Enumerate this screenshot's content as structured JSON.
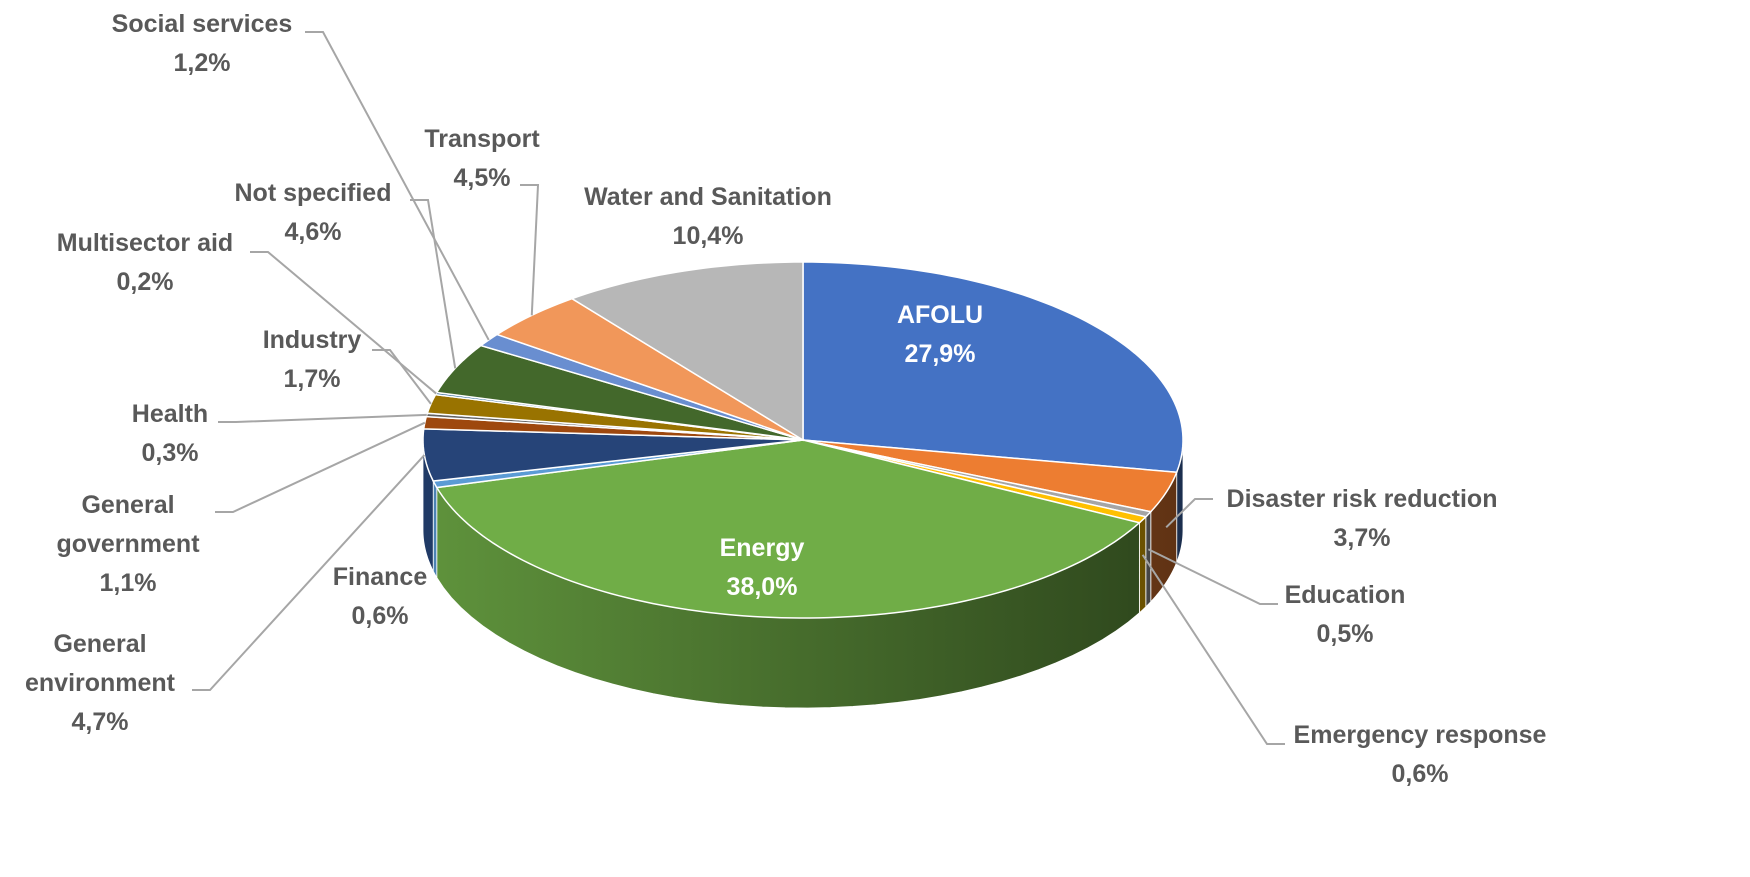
{
  "chart_data": {
    "type": "pie3d",
    "categories": [
      "AFOLU",
      "Disaster risk reduction",
      "Education",
      "Emergency response",
      "Energy",
      "Finance",
      "General environment",
      "General government",
      "Health",
      "Industry",
      "Multisector aid",
      "Not specified",
      "Social services",
      "Transport",
      "Water and Sanitation"
    ],
    "values": [
      27.9,
      3.7,
      0.5,
      0.6,
      38.0,
      0.6,
      4.7,
      1.1,
      0.3,
      1.7,
      0.2,
      4.6,
      1.2,
      4.5,
      10.4
    ],
    "value_labels": [
      "27,9%",
      "3,7%",
      "0,5%",
      "0,6%",
      "38,0%",
      "0,6%",
      "4,7%",
      "1,1%",
      "0,3%",
      "1,7%",
      "0,2%",
      "4,6%",
      "1,2%",
      "4,5%",
      "10,4%"
    ],
    "colors": [
      "#4472c4",
      "#ed7d31",
      "#a5a5a5",
      "#ffc000",
      "#70ad47",
      "#5b9bd5",
      "#264478",
      "#9e480e",
      "#636363",
      "#997300",
      "#255e91",
      "#43682b",
      "#698ed0",
      "#f1975a",
      "#b7b7b7"
    ]
  }
}
